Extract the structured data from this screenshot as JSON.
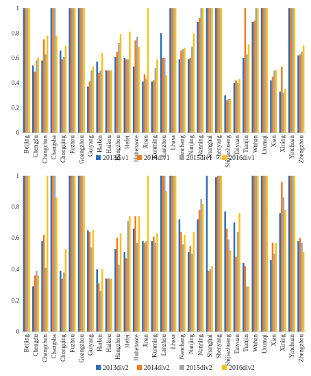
{
  "colors": [
    "#2f6fb7",
    "#f47b20",
    "#a5a5a5",
    "#f9c21a"
  ],
  "chart_data": [
    {
      "type": "bar",
      "title": "",
      "xlabel": "",
      "ylabel": "",
      "ylim": [
        0,
        1
      ],
      "yticks": [
        "0",
        "0.2",
        "0.4",
        "0.6",
        "0.8",
        "1"
      ],
      "grid": false,
      "legend_position": "bottom",
      "categories": [
        "Beijing",
        "Chengdu",
        "Changchun",
        "Changsha",
        "Chongqing",
        "Fuzhou",
        "Guangzhou",
        "Guiyang",
        "Harbin",
        "Haikou",
        "Hangzhou",
        "Hefei",
        "Huhehaote",
        "Jinan",
        "Kunming",
        "Lanzhou",
        "Lhasa",
        "Nanchang",
        "Nanjing",
        "Nanning",
        "Shanghai",
        "Shenyang",
        "Shijiazhuang",
        "Taiyuan",
        "Tianjin",
        "Wuhan",
        "Urumqi",
        "Xian",
        "Xining",
        "Yinchuan",
        "Zhengzhou"
      ],
      "series": [
        {
          "name": "2013div1",
          "values": [
            1,
            0.54,
            0.58,
            1,
            0.66,
            1,
            1,
            0.37,
            0.57,
            0.5,
            0.61,
            0.6,
            0.53,
            0.41,
            0.41,
            0.8,
            1,
            0.59,
            0.59,
            0.89,
            1,
            1,
            0.3,
            0.4,
            0.6,
            0.89,
            1,
            0.42,
            0.33,
            1,
            0.62
          ]
        },
        {
          "name": "2014div1",
          "values": [
            1,
            0.49,
            0.75,
            1,
            0.59,
            1,
            1,
            0.41,
            0.48,
            0.5,
            0.65,
            0.59,
            0.74,
            0.47,
            0.42,
            0.6,
            1,
            0.66,
            0.6,
            0.92,
            1,
            1,
            0.26,
            0.42,
            1,
            0.9,
            1,
            0.45,
            0.53,
            1,
            0.63
          ]
        },
        {
          "name": "2015div1",
          "values": [
            1,
            0.58,
            0.63,
            1,
            0.61,
            1,
            1,
            0.5,
            0.5,
            0.5,
            0.72,
            0.59,
            0.77,
            0.43,
            0.52,
            0.6,
            1,
            0.67,
            0.69,
            1,
            1,
            1,
            0.27,
            0.4,
            0.63,
            1,
            1,
            0.5,
            0.32,
            1,
            0.65
          ]
        },
        {
          "name": "2016div1",
          "values": [
            1,
            0.6,
            0.78,
            0.78,
            0.7,
            1,
            1,
            0.53,
            0.64,
            0.5,
            0.79,
            0.81,
            0.69,
            1,
            0.59,
            0.46,
            1,
            0.68,
            0.8,
            1,
            1,
            1,
            0.27,
            0.43,
            0.71,
            1,
            1,
            0.5,
            0.35,
            1,
            0.7
          ]
        }
      ]
    },
    {
      "type": "bar",
      "title": "",
      "xlabel": "",
      "ylabel": "",
      "ylim": [
        0,
        1
      ],
      "yticks": [
        "0",
        "0.2",
        "0.4",
        "0.6",
        "0.8",
        "1"
      ],
      "grid": false,
      "legend_position": "bottom",
      "categories": [
        "Beijing",
        "Chengdu",
        "Changchun",
        "Changsha",
        "Chongqing",
        "Fuzhou",
        "Guangzhou",
        "Guiyang",
        "Harbin",
        "Haikou",
        "Hangzhou",
        "Hefei",
        "Huhehaote",
        "Jinan",
        "Kunming",
        "Lanzhou",
        "Lhasa",
        "Nanchang",
        "Nanjing",
        "Nanning",
        "Shanghai",
        "Shenyang",
        "Shijiazhuang",
        "Taiyuan",
        "Tianjin",
        "Wuhan",
        "Urumqi",
        "Xian",
        "Xining",
        "Yinchuan",
        "Zhengzhou"
      ],
      "series": [
        {
          "name": "2013div2",
          "values": [
            1,
            0.29,
            0.58,
            1,
            0.39,
            1,
            1,
            0.65,
            0.4,
            0.34,
            0.53,
            0.51,
            0.66,
            0.58,
            0.58,
            1,
            1,
            0.72,
            0.51,
            0.72,
            1,
            0.99,
            0.77,
            0.7,
            0.44,
            1,
            1,
            0.46,
            0.76,
            1,
            0.58
          ]
        },
        {
          "name": "2014div2",
          "values": [
            1,
            0.36,
            0.62,
            1,
            0.34,
            1,
            1,
            0.64,
            0.31,
            0.34,
            0.6,
            0.47,
            0.74,
            0.57,
            0.61,
            1,
            1,
            0.64,
            0.55,
            0.78,
            0.39,
            1,
            0.66,
            0.48,
            0.42,
            1,
            1,
            0.57,
            0.96,
            1,
            0.6
          ]
        },
        {
          "name": "2015div2",
          "values": [
            1,
            0.39,
            0.41,
            1,
            0.38,
            1,
            1,
            0.54,
            0.26,
            0.34,
            0.43,
            0.71,
            0.57,
            0.58,
            0.57,
            1,
            1,
            0.56,
            0.5,
            0.85,
            0.4,
            1,
            0.59,
            0.64,
            0.29,
            1,
            1,
            0.5,
            0.86,
            1,
            0.57
          ]
        },
        {
          "name": "2016div2",
          "values": [
            1,
            0.36,
            1,
            0.86,
            0.53,
            1,
            1,
            0.65,
            0.4,
            0.34,
            0.63,
            0.74,
            0.74,
            1,
            0.63,
            0.9,
            1,
            0.62,
            0.64,
            0.82,
            0.42,
            1,
            0.52,
            0.76,
            0.29,
            1,
            1,
            0.57,
            0.78,
            1,
            0.51
          ]
        }
      ]
    }
  ]
}
